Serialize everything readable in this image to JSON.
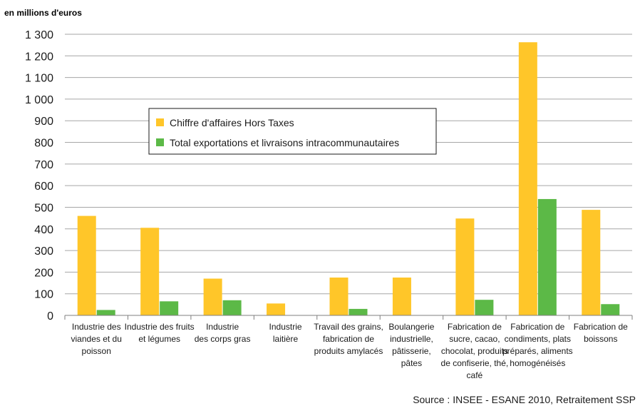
{
  "chart_data": {
    "type": "bar",
    "ylabel": "en millions d'euros",
    "ylim": [
      0,
      1300
    ],
    "yticks": [
      "0",
      "100",
      "200",
      "300",
      "400",
      "500",
      "600",
      "700",
      "800",
      "900",
      "1 000",
      "1 100",
      "1 200",
      "1 300"
    ],
    "grid": true,
    "legend_position": "top-left",
    "categories": [
      [
        "Industrie des",
        "viandes et du",
        "poisson"
      ],
      [
        "Industrie des fruits",
        "et légumes"
      ],
      [
        "Industrie",
        "des corps gras"
      ],
      [
        "Industrie",
        "laitière"
      ],
      [
        "Travail des grains,",
        "fabrication de",
        "produits amylacés"
      ],
      [
        "Boulangerie",
        "industrielle,",
        "pâtisserie,",
        "pâtes"
      ],
      [
        "Fabrication de",
        "sucre, cacao,",
        "chocolat, produits",
        "de confiserie, thé,",
        "café"
      ],
      [
        "Fabrication de",
        "condiments, plats",
        "préparés, aliments",
        "homogénéisés"
      ],
      [
        "Fabrication de",
        "boissons"
      ]
    ],
    "series": [
      {
        "name": "Chiffre d'affaires Hors Taxes",
        "color": "#ffc629",
        "values": [
          460,
          405,
          170,
          55,
          175,
          175,
          448,
          1263,
          488
        ]
      },
      {
        "name": "Total exportations et livraisons intracommunautaires",
        "color": "#5cb947",
        "values": [
          25,
          65,
          70,
          null,
          30,
          null,
          72,
          538,
          52
        ]
      }
    ],
    "source": "Source : INSEE - ESANE 2010, Retraitement SSP"
  }
}
